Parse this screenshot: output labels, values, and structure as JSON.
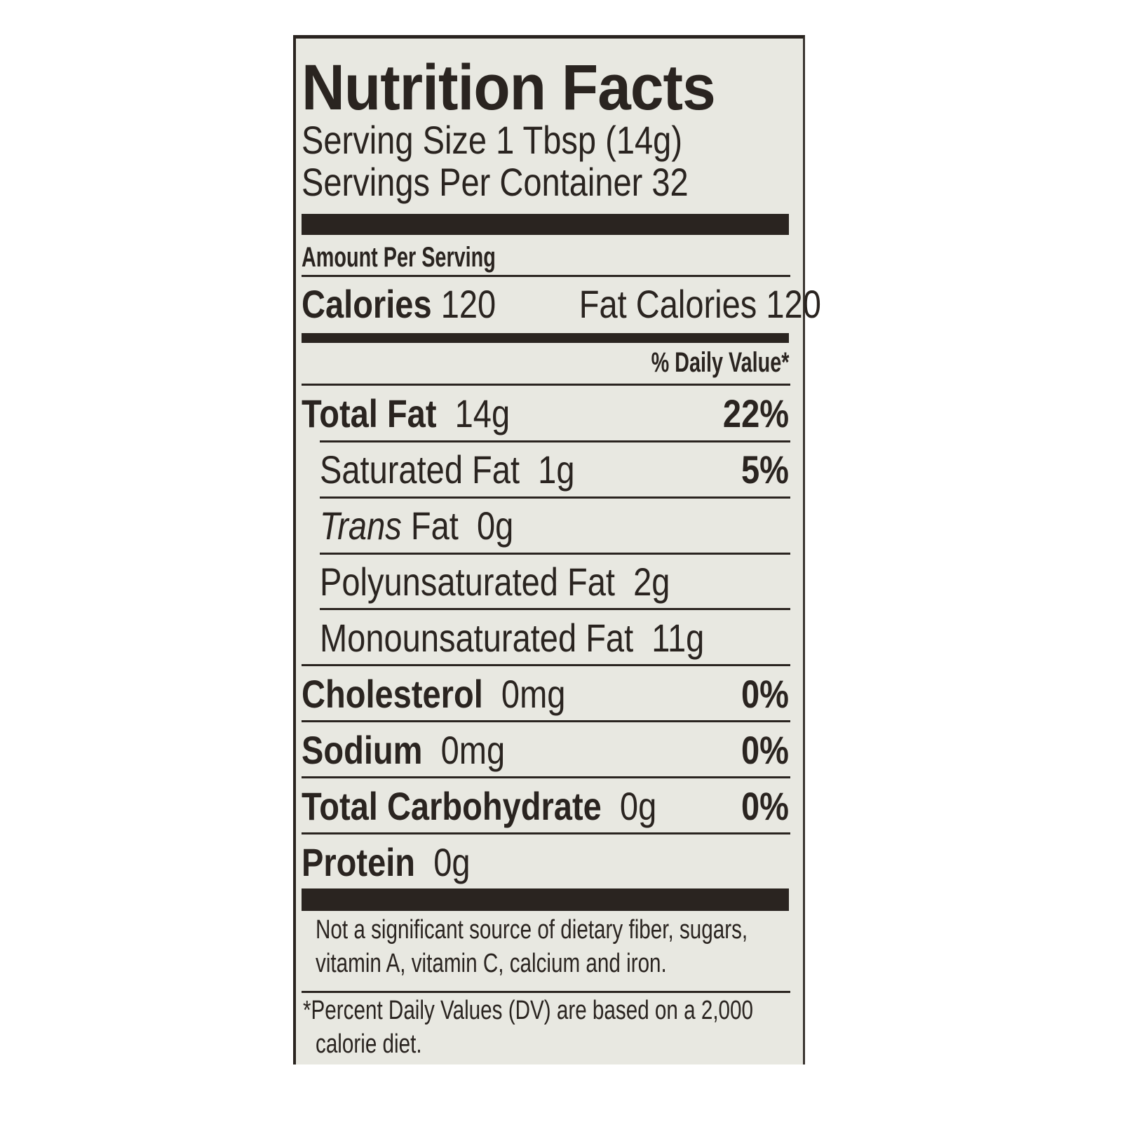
{
  "title": "Nutrition Facts",
  "serving_size": "Serving Size 1 Tbsp (14g)",
  "servings_per_container": "Servings Per Container 32",
  "amount_per_serving": "Amount Per Serving",
  "calories": {
    "label": "Calories",
    "value": "120",
    "fat_label": "Fat Calories",
    "fat_value": "120"
  },
  "daily_value_header": "% Daily Value*",
  "nutrients": [
    {
      "label": "Total Fat",
      "amount": "14g",
      "dv": "22%"
    },
    {
      "label": "Saturated Fat",
      "amount": "1g",
      "dv": "5%"
    },
    {
      "label": "Trans",
      "label_rest": "Fat",
      "amount": "0g",
      "dv": ""
    },
    {
      "label": "Polyunsaturated Fat",
      "amount": "2g",
      "dv": ""
    },
    {
      "label": "Monounsaturated Fat",
      "amount": "11g",
      "dv": ""
    },
    {
      "label": "Cholesterol",
      "amount": "0mg",
      "dv": "0%"
    },
    {
      "label": "Sodium",
      "amount": "0mg",
      "dv": "0%"
    },
    {
      "label": "Total Carbohydrate",
      "amount": "0g",
      "dv": "0%"
    },
    {
      "label": "Protein",
      "amount": "0g",
      "dv": ""
    }
  ],
  "footnote_1_line1": "Not a significant source of dietary fiber, sugars,",
  "footnote_1_line2": "vitamin A, vitamin C, calcium and iron.",
  "footnote_2_line1": "*Percent Daily Values (DV) are based on a 2,000",
  "footnote_2_line2": "calorie diet.",
  "colors": {
    "ink": "#2a2420",
    "background": "#e8e8e1"
  }
}
